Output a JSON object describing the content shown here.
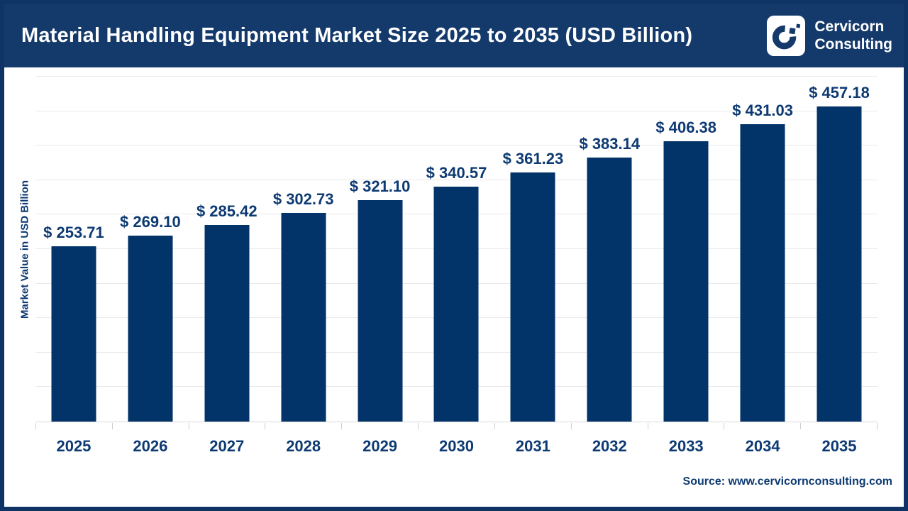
{
  "header": {
    "title": "Material Handling Equipment Market Size 2025 to 2035 (USD Billion)",
    "logo": {
      "line1": "Cervicorn",
      "line2": "Consulting"
    }
  },
  "chart_data": {
    "type": "bar",
    "title": "Material Handling Equipment Market Size 2025 to 2035 (USD Billion)",
    "categories": [
      "2025",
      "2026",
      "2027",
      "2028",
      "2029",
      "2030",
      "2031",
      "2032",
      "2033",
      "2034",
      "2035"
    ],
    "values": [
      253.71,
      269.1,
      285.42,
      302.73,
      321.1,
      340.57,
      361.23,
      383.14,
      406.38,
      431.03,
      457.18
    ],
    "data_labels": [
      "$ 253.71",
      "$ 269.10",
      "$ 285.42",
      "$ 302.73",
      "$ 321.10",
      "$ 340.57",
      "$ 361.23",
      "$ 383.14",
      "$ 406.38",
      "$ 431.03",
      "$ 457.18"
    ],
    "label_prefix": "$ ",
    "xlabel": "",
    "ylabel": "Market Value in USD Billion",
    "ylim": [
      0,
      500
    ],
    "grid_step": 50,
    "grid": true,
    "legend": false
  },
  "footer": {
    "source": "Source: www.cervicornconsulting.com"
  },
  "colors": {
    "header_bg": "#14396b",
    "frame_border": "#0f3365",
    "bar": "#023369",
    "label_text": "#0d3a72",
    "title_text": "#ffffff",
    "gridline": "#e9e9ec",
    "axis_line": "#d9d9d9"
  }
}
